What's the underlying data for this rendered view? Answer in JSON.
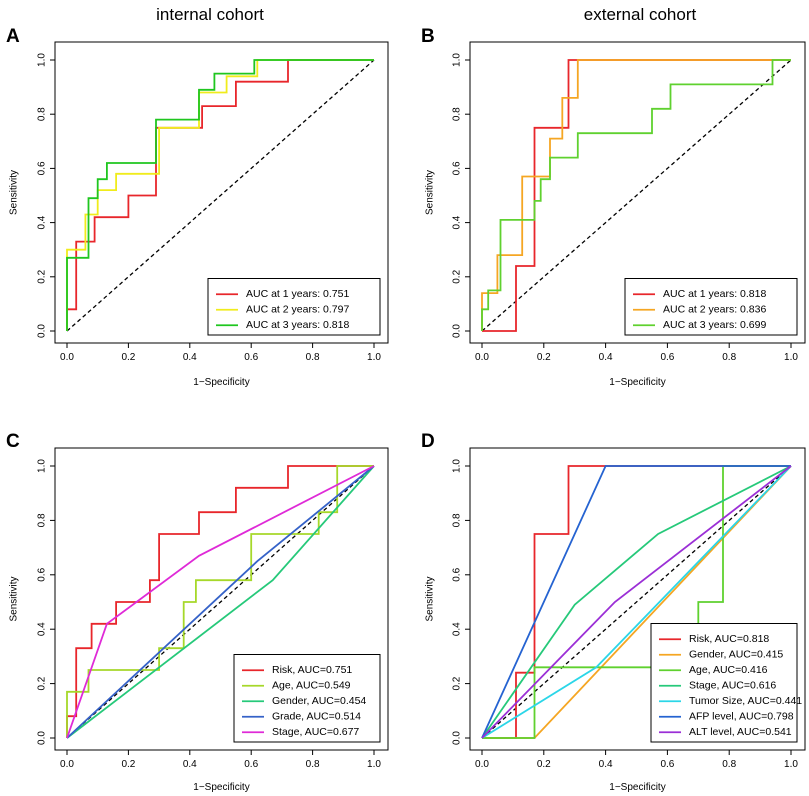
{
  "column_titles": [
    "internal cohort",
    "external cohort"
  ],
  "chart_data": [
    {
      "type": "line",
      "panel": "A",
      "xlabel": "1−Specificity",
      "ylabel": "Sensitivity",
      "xlim": [
        0,
        1
      ],
      "ylim": [
        0,
        1
      ],
      "xticks": [
        "0.0",
        "0.2",
        "0.4",
        "0.6",
        "0.8",
        "1.0"
      ],
      "yticks": [
        "0.0",
        "0.2",
        "0.4",
        "0.6",
        "0.8",
        "1.0"
      ],
      "legend_position": "bottom-right",
      "reference_line": "diagonal dashed",
      "series": [
        {
          "name": "AUC at 1 years: 0.751",
          "color": "#e8262b",
          "x": [
            0,
            0,
            0.03,
            0.03,
            0.09,
            0.09,
            0.2,
            0.2,
            0.29,
            0.29,
            0.44,
            0.44,
            0.55,
            0.55,
            0.72,
            0.72,
            1
          ],
          "y": [
            0,
            0.08,
            0.08,
            0.33,
            0.33,
            0.42,
            0.42,
            0.5,
            0.5,
            0.75,
            0.75,
            0.83,
            0.83,
            0.92,
            0.92,
            1,
            1
          ]
        },
        {
          "name": "AUC at 2 years: 0.797",
          "color": "#f0ec1c",
          "x": [
            0,
            0,
            0.06,
            0.06,
            0.1,
            0.1,
            0.16,
            0.16,
            0.3,
            0.3,
            0.43,
            0.43,
            0.52,
            0.52,
            0.62,
            0.62,
            1
          ],
          "y": [
            0,
            0.3,
            0.3,
            0.43,
            0.43,
            0.52,
            0.52,
            0.58,
            0.58,
            0.75,
            0.75,
            0.88,
            0.88,
            0.94,
            0.94,
            1,
            1
          ]
        },
        {
          "name": "AUC at 3 years: 0.818",
          "color": "#1fc61f",
          "x": [
            0,
            0,
            0.07,
            0.07,
            0.1,
            0.1,
            0.13,
            0.13,
            0.29,
            0.29,
            0.43,
            0.43,
            0.48,
            0.48,
            0.61,
            0.61,
            1
          ],
          "y": [
            0,
            0.27,
            0.27,
            0.49,
            0.49,
            0.56,
            0.56,
            0.62,
            0.62,
            0.78,
            0.78,
            0.89,
            0.89,
            0.95,
            0.95,
            1,
            1
          ]
        }
      ]
    },
    {
      "type": "line",
      "panel": "B",
      "xlabel": "1−Specificity",
      "ylabel": "Sensitivity",
      "xlim": [
        0,
        1
      ],
      "ylim": [
        0,
        1
      ],
      "xticks": [
        "0.0",
        "0.2",
        "0.4",
        "0.6",
        "0.8",
        "1.0"
      ],
      "yticks": [
        "0.0",
        "0.2",
        "0.4",
        "0.6",
        "0.8",
        "1.0"
      ],
      "legend_position": "bottom-right",
      "reference_line": "diagonal dashed",
      "series": [
        {
          "name": "AUC at 1 years: 0.818",
          "color": "#e8262b",
          "x": [
            0,
            0.11,
            0.11,
            0.17,
            0.17,
            0.23,
            0.23,
            0.28,
            0.28,
            1
          ],
          "y": [
            0,
            0,
            0.24,
            0.24,
            0.75,
            0.75,
            0.75,
            0.75,
            1,
            1
          ]
        },
        {
          "name": "AUC at 2 years: 0.836",
          "color": "#f5a623",
          "x": [
            0,
            0,
            0.05,
            0.05,
            0.13,
            0.13,
            0.22,
            0.22,
            0.26,
            0.26,
            0.31,
            0.31,
            1
          ],
          "y": [
            0,
            0.14,
            0.14,
            0.28,
            0.28,
            0.57,
            0.57,
            0.71,
            0.71,
            0.86,
            0.86,
            1,
            1
          ]
        },
        {
          "name": "AUC at 3 years: 0.699",
          "color": "#5fd12f",
          "x": [
            0,
            0,
            0.02,
            0.02,
            0.06,
            0.06,
            0.09,
            0.09,
            0.17,
            0.17,
            0.19,
            0.19,
            0.22,
            0.22,
            0.31,
            0.31,
            0.55,
            0.55,
            0.61,
            0.61,
            0.94,
            0.94,
            1
          ],
          "y": [
            0,
            0.08,
            0.08,
            0.15,
            0.15,
            0.41,
            0.41,
            0.41,
            0.41,
            0.48,
            0.48,
            0.56,
            0.56,
            0.64,
            0.64,
            0.73,
            0.73,
            0.82,
            0.82,
            0.91,
            0.91,
            1,
            1
          ]
        }
      ]
    },
    {
      "type": "line",
      "panel": "C",
      "xlabel": "1−Specificity",
      "ylabel": "Sensitivity",
      "xlim": [
        0,
        1
      ],
      "ylim": [
        0,
        1
      ],
      "xticks": [
        "0.0",
        "0.2",
        "0.4",
        "0.6",
        "0.8",
        "1.0"
      ],
      "yticks": [
        "0.0",
        "0.2",
        "0.4",
        "0.6",
        "0.8",
        "1.0"
      ],
      "legend_position": "bottom-right",
      "reference_line": "diagonal dashed",
      "series": [
        {
          "name": "Risk, AUC=0.751",
          "color": "#e8262b",
          "x": [
            0,
            0,
            0.03,
            0.03,
            0.08,
            0.08,
            0.16,
            0.16,
            0.27,
            0.27,
            0.3,
            0.3,
            0.43,
            0.43,
            0.55,
            0.55,
            0.72,
            0.72,
            1
          ],
          "y": [
            0,
            0.08,
            0.08,
            0.33,
            0.33,
            0.42,
            0.42,
            0.5,
            0.5,
            0.58,
            0.58,
            0.75,
            0.75,
            0.83,
            0.83,
            0.92,
            0.92,
            1,
            1
          ]
        },
        {
          "name": "Age, AUC=0.549",
          "color": "#a6d82a",
          "x": [
            0,
            0,
            0.07,
            0.07,
            0.3,
            0.3,
            0.38,
            0.38,
            0.42,
            0.42,
            0.6,
            0.6,
            0.7,
            0.7,
            0.82,
            0.82,
            0.88,
            0.88,
            1
          ],
          "y": [
            0,
            0.17,
            0.17,
            0.25,
            0.25,
            0.33,
            0.33,
            0.5,
            0.5,
            0.58,
            0.58,
            0.75,
            0.75,
            0.75,
            0.75,
            0.83,
            0.83,
            1,
            1
          ]
        },
        {
          "name": "Gender, AUC=0.454",
          "color": "#26c97a",
          "x": [
            0,
            0.67,
            1
          ],
          "y": [
            0,
            0.58,
            1
          ]
        },
        {
          "name": "Grade, AUC=0.514",
          "color": "#3562c8",
          "x": [
            0,
            0.62,
            1
          ],
          "y": [
            0,
            0.65,
            1
          ]
        },
        {
          "name": "Stage, AUC=0.677",
          "color": "#df2ad7",
          "x": [
            0,
            0.13,
            0.43,
            1
          ],
          "y": [
            0,
            0.42,
            0.67,
            1
          ]
        }
      ]
    },
    {
      "type": "line",
      "panel": "D",
      "xlabel": "1−Specificity",
      "ylabel": "Sensitivity",
      "xlim": [
        0,
        1
      ],
      "ylim": [
        0,
        1
      ],
      "xticks": [
        "0.0",
        "0.2",
        "0.4",
        "0.6",
        "0.8",
        "1.0"
      ],
      "yticks": [
        "0.0",
        "0.2",
        "0.4",
        "0.6",
        "0.8",
        "1.0"
      ],
      "legend_position": "bottom-right",
      "reference_line": "diagonal dashed",
      "series": [
        {
          "name": "Risk, AUC=0.818",
          "color": "#e8262b",
          "x": [
            0,
            0.11,
            0.11,
            0.17,
            0.17,
            0.23,
            0.23,
            0.28,
            0.28,
            1
          ],
          "y": [
            0,
            0,
            0.24,
            0.24,
            0.75,
            0.75,
            0.75,
            0.75,
            1,
            1
          ]
        },
        {
          "name": "Gender, AUC=0.415",
          "color": "#f5a623",
          "x": [
            0,
            0.17,
            0.17,
            1
          ],
          "y": [
            0,
            0,
            0,
            1
          ]
        },
        {
          "name": "Age, AUC=0.416",
          "color": "#5fd12f",
          "x": [
            0,
            0.17,
            0.17,
            0.56,
            0.56,
            0.7,
            0.7,
            0.78,
            0.78,
            1
          ],
          "y": [
            0,
            0,
            0.26,
            0.26,
            0.26,
            0.26,
            0.5,
            0.5,
            1,
            1
          ]
        },
        {
          "name": "Stage, AUC=0.616",
          "color": "#26c97a",
          "x": [
            0,
            0.3,
            0.57,
            1
          ],
          "y": [
            0,
            0.49,
            0.75,
            1
          ]
        },
        {
          "name": "Tumor Size, AUC=0.441",
          "color": "#2bd6e8",
          "x": [
            0,
            0.37,
            1
          ],
          "y": [
            0,
            0.26,
            1
          ]
        },
        {
          "name": "AFP level, AUC=0.798",
          "color": "#2563d1",
          "x": [
            0,
            0.4,
            1
          ],
          "y": [
            0,
            1,
            1
          ]
        },
        {
          "name": "ALT level, AUC=0.541",
          "color": "#9b2fd6",
          "x": [
            0,
            0.43,
            1
          ],
          "y": [
            0,
            0.5,
            1
          ]
        }
      ]
    }
  ]
}
